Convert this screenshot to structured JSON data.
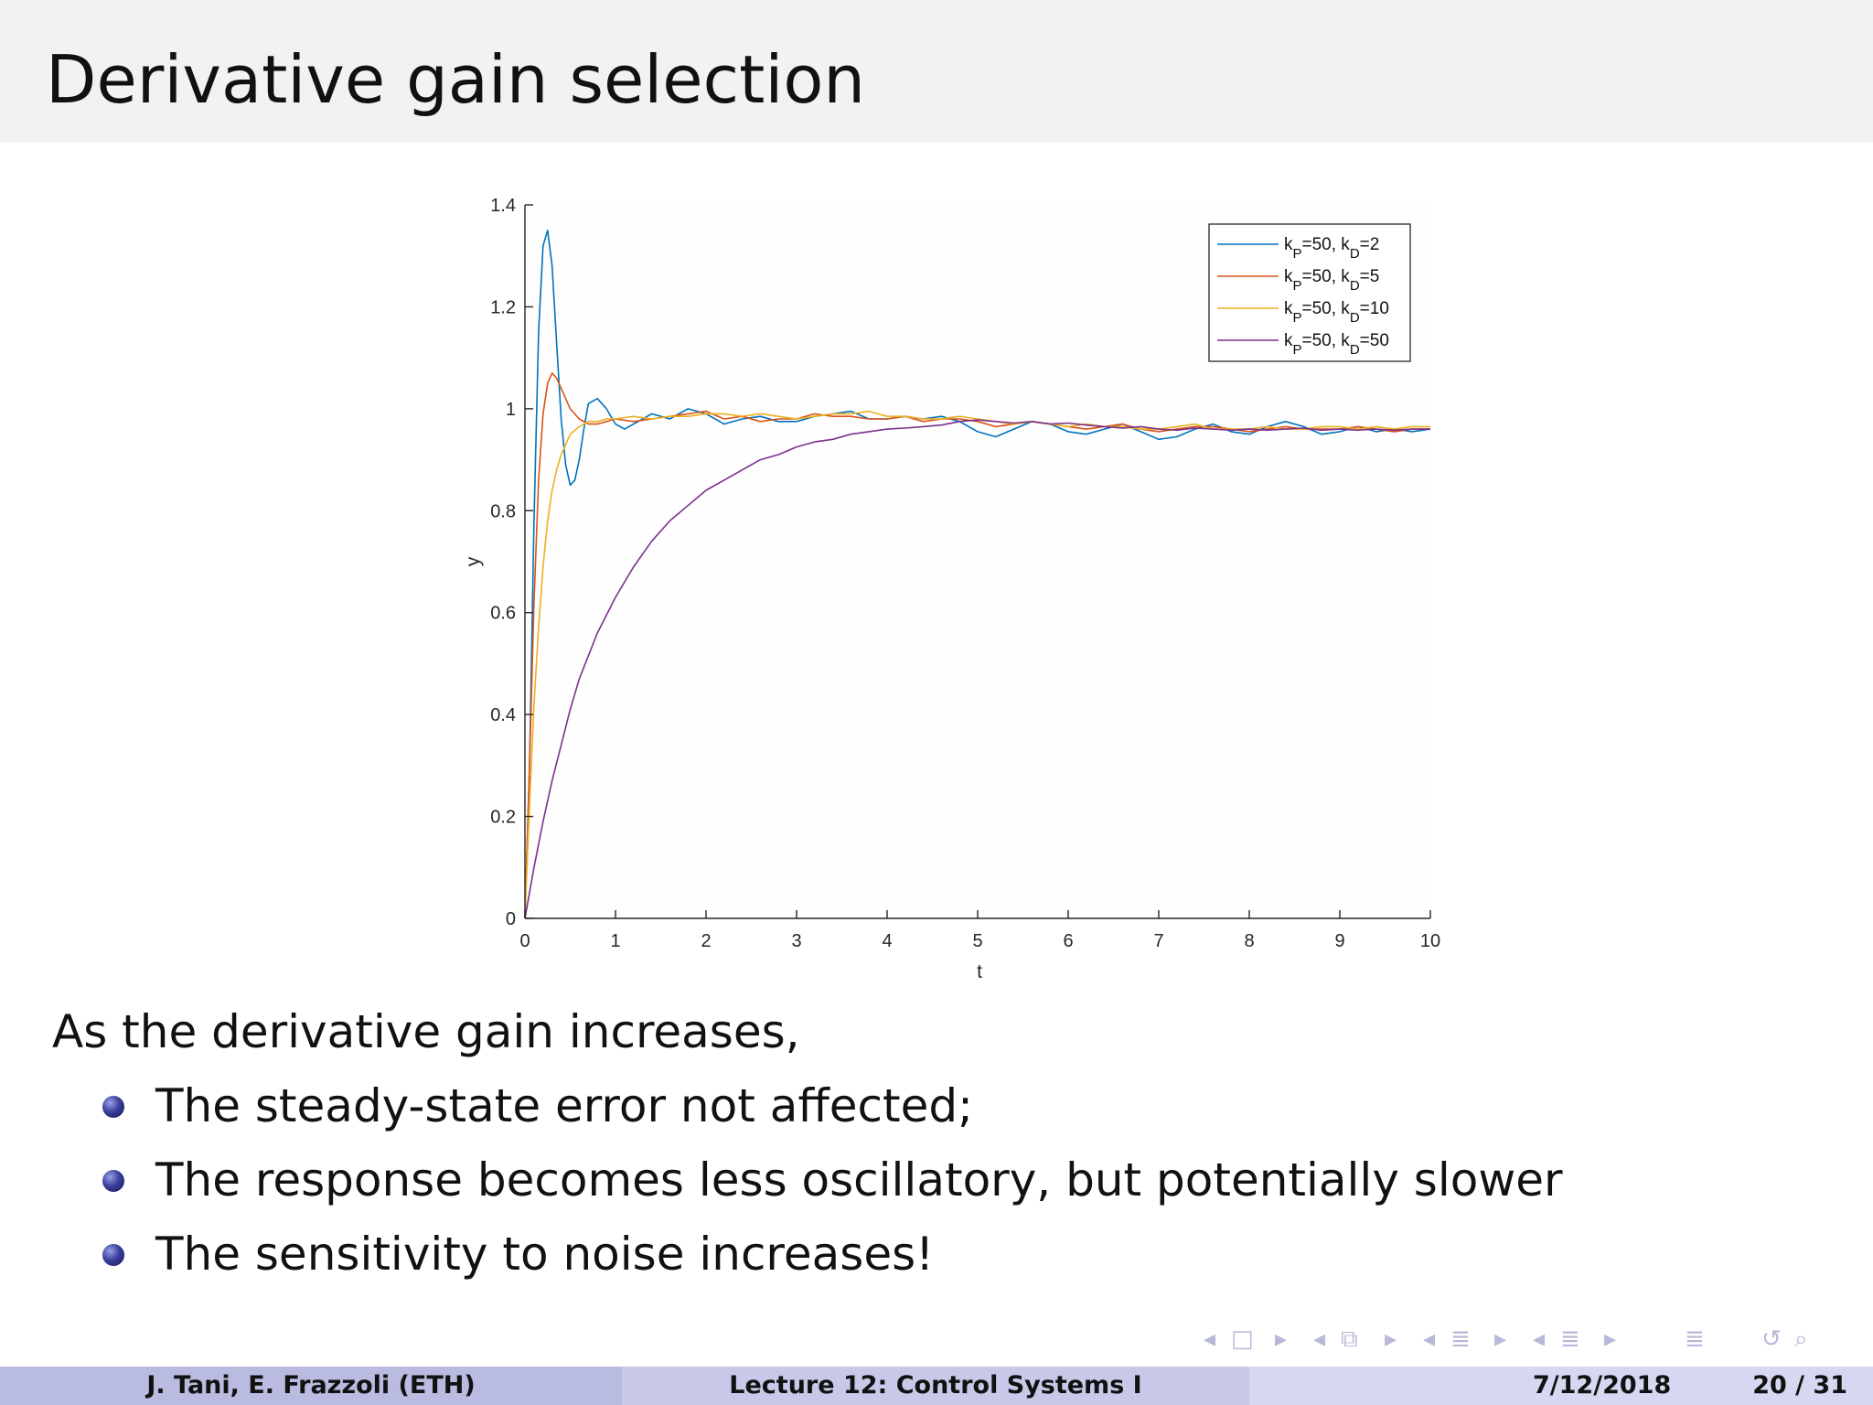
{
  "slide": {
    "title": "Derivative gain selection",
    "intro": "As the derivative gain increases,",
    "bullets": [
      "The steady-state error not affected;",
      "The response becomes less oscillatory, but potentially slower",
      "The sensitivity to noise increases!"
    ]
  },
  "footer": {
    "authors": "J. Tani, E. Frazzoli  (ETH)",
    "lecture": "Lecture 12: Control Systems I",
    "date": "7/12/2018",
    "page": "20 / 31"
  },
  "navigation": {
    "icons": [
      "arrow-left-icon",
      "frame-icon",
      "arrow-right-icon",
      "arrow-left-icon",
      "subsection-icon",
      "arrow-right-icon",
      "arrow-left-icon",
      "section-icon",
      "arrow-right-icon",
      "arrow-left-icon",
      "align-icon",
      "arrow-right-icon",
      "align-icon",
      "loop-icon",
      "search-icon"
    ]
  },
  "chart_data": {
    "type": "line",
    "xlabel": "t",
    "ylabel": "y",
    "xlim": [
      0,
      10
    ],
    "ylim": [
      0,
      1.4
    ],
    "xticks": [
      "0",
      "1",
      "2",
      "3",
      "4",
      "5",
      "6",
      "7",
      "8",
      "9",
      "10"
    ],
    "yticks": [
      "0",
      "0.2",
      "0.4",
      "0.6",
      "0.8",
      "1",
      "1.2",
      "1.4"
    ],
    "legend_position": "top-right",
    "grid": false,
    "series": [
      {
        "name": "kP=50, kD=2",
        "name_parts": {
          "k1": "k",
          "sub1": "P",
          "mid": "=50, k",
          "sub2": "D",
          "end": "=2"
        },
        "color": "#0072bd",
        "x": [
          0,
          0.05,
          0.1,
          0.15,
          0.2,
          0.25,
          0.3,
          0.35,
          0.4,
          0.45,
          0.5,
          0.55,
          0.6,
          0.65,
          0.7,
          0.8,
          0.9,
          1.0,
          1.1,
          1.2,
          1.3,
          1.4,
          1.5,
          1.6,
          1.7,
          1.8,
          2.0,
          2.2,
          2.4,
          2.6,
          2.8,
          3.0,
          3.2,
          3.4,
          3.6,
          3.8,
          4.0,
          4.2,
          4.4,
          4.6,
          4.8,
          5.0,
          5.2,
          5.4,
          5.6,
          5.8,
          6.0,
          6.2,
          6.4,
          6.6,
          6.8,
          7.0,
          7.2,
          7.4,
          7.6,
          7.8,
          8.0,
          8.2,
          8.4,
          8.6,
          8.8,
          9.0,
          9.2,
          9.4,
          9.6,
          9.8,
          10.0
        ],
        "y": [
          0,
          0.3,
          0.78,
          1.15,
          1.32,
          1.35,
          1.28,
          1.13,
          0.98,
          0.89,
          0.85,
          0.86,
          0.9,
          0.96,
          1.01,
          1.02,
          1.0,
          0.97,
          0.96,
          0.97,
          0.98,
          0.99,
          0.985,
          0.98,
          0.99,
          1.0,
          0.99,
          0.97,
          0.98,
          0.985,
          0.975,
          0.975,
          0.985,
          0.99,
          0.995,
          0.98,
          0.98,
          0.985,
          0.98,
          0.985,
          0.975,
          0.955,
          0.945,
          0.96,
          0.975,
          0.97,
          0.955,
          0.95,
          0.96,
          0.97,
          0.955,
          0.94,
          0.945,
          0.96,
          0.97,
          0.955,
          0.95,
          0.965,
          0.975,
          0.965,
          0.95,
          0.955,
          0.965,
          0.955,
          0.96,
          0.955,
          0.96
        ]
      },
      {
        "name": "kP=50, kD=5",
        "name_parts": {
          "k1": "k",
          "sub1": "P",
          "mid": "=50, k",
          "sub2": "D",
          "end": "=5"
        },
        "color": "#d95319",
        "x": [
          0,
          0.05,
          0.1,
          0.15,
          0.2,
          0.25,
          0.3,
          0.35,
          0.4,
          0.45,
          0.5,
          0.6,
          0.7,
          0.8,
          0.9,
          1.0,
          1.2,
          1.4,
          1.6,
          1.8,
          2.0,
          2.2,
          2.4,
          2.6,
          2.8,
          3.0,
          3.2,
          3.4,
          3.6,
          3.8,
          4.0,
          4.2,
          4.4,
          4.6,
          4.8,
          5.0,
          5.2,
          5.4,
          5.6,
          5.8,
          6.0,
          6.2,
          6.4,
          6.6,
          6.8,
          7.0,
          7.2,
          7.4,
          7.6,
          7.8,
          8.0,
          8.2,
          8.4,
          8.6,
          8.8,
          9.0,
          9.2,
          9.4,
          9.6,
          9.8,
          10.0
        ],
        "y": [
          0,
          0.3,
          0.62,
          0.86,
          0.99,
          1.05,
          1.07,
          1.06,
          1.04,
          1.02,
          1.0,
          0.98,
          0.97,
          0.97,
          0.975,
          0.98,
          0.975,
          0.98,
          0.985,
          0.99,
          0.995,
          0.98,
          0.985,
          0.975,
          0.98,
          0.98,
          0.99,
          0.985,
          0.985,
          0.98,
          0.98,
          0.985,
          0.975,
          0.98,
          0.98,
          0.975,
          0.965,
          0.97,
          0.975,
          0.97,
          0.965,
          0.96,
          0.965,
          0.97,
          0.96,
          0.955,
          0.96,
          0.965,
          0.965,
          0.96,
          0.955,
          0.96,
          0.965,
          0.96,
          0.96,
          0.96,
          0.965,
          0.96,
          0.955,
          0.96,
          0.96
        ]
      },
      {
        "name": "kP=50, kD=10",
        "name_parts": {
          "k1": "k",
          "sub1": "P",
          "mid": "=50, k",
          "sub2": "D",
          "end": "=10"
        },
        "color": "#edb120",
        "x": [
          0,
          0.05,
          0.1,
          0.15,
          0.2,
          0.25,
          0.3,
          0.35,
          0.4,
          0.5,
          0.6,
          0.7,
          0.8,
          0.9,
          1.0,
          1.2,
          1.4,
          1.6,
          1.8,
          2.0,
          2.2,
          2.4,
          2.6,
          2.8,
          3.0,
          3.2,
          3.4,
          3.6,
          3.8,
          4.0,
          4.2,
          4.4,
          4.6,
          4.8,
          5.0,
          5.2,
          5.4,
          5.6,
          5.8,
          6.0,
          6.2,
          6.4,
          6.6,
          6.8,
          7.0,
          7.2,
          7.4,
          7.6,
          7.8,
          8.0,
          8.2,
          8.4,
          8.6,
          8.8,
          9.0,
          9.2,
          9.4,
          9.6,
          9.8,
          10.0
        ],
        "y": [
          0,
          0.22,
          0.42,
          0.57,
          0.69,
          0.78,
          0.84,
          0.88,
          0.91,
          0.95,
          0.965,
          0.975,
          0.975,
          0.98,
          0.98,
          0.985,
          0.98,
          0.985,
          0.985,
          0.99,
          0.99,
          0.985,
          0.99,
          0.985,
          0.98,
          0.985,
          0.99,
          0.99,
          0.995,
          0.985,
          0.985,
          0.98,
          0.98,
          0.985,
          0.98,
          0.975,
          0.97,
          0.975,
          0.97,
          0.965,
          0.97,
          0.965,
          0.965,
          0.96,
          0.96,
          0.965,
          0.97,
          0.96,
          0.96,
          0.96,
          0.965,
          0.96,
          0.96,
          0.965,
          0.965,
          0.96,
          0.965,
          0.96,
          0.965,
          0.965
        ]
      },
      {
        "name": "kP=50, kD=50",
        "name_parts": {
          "k1": "k",
          "sub1": "P",
          "mid": "=50, k",
          "sub2": "D",
          "end": "=50"
        },
        "color": "#7e2f8e",
        "x": [
          0,
          0.1,
          0.2,
          0.3,
          0.4,
          0.5,
          0.6,
          0.8,
          1.0,
          1.2,
          1.4,
          1.6,
          1.8,
          2.0,
          2.2,
          2.4,
          2.6,
          2.8,
          3.0,
          3.2,
          3.4,
          3.6,
          3.8,
          4.0,
          4.2,
          4.4,
          4.6,
          4.8,
          5.0,
          5.2,
          5.4,
          5.6,
          5.8,
          6.0,
          6.2,
          6.4,
          6.6,
          6.8,
          7.0,
          7.2,
          7.4,
          7.6,
          7.8,
          8.0,
          8.2,
          8.4,
          8.6,
          8.8,
          9.0,
          9.2,
          9.4,
          9.6,
          9.8,
          10.0
        ],
        "y": [
          0,
          0.1,
          0.19,
          0.27,
          0.34,
          0.41,
          0.47,
          0.56,
          0.63,
          0.69,
          0.74,
          0.78,
          0.81,
          0.84,
          0.86,
          0.88,
          0.9,
          0.91,
          0.925,
          0.935,
          0.94,
          0.95,
          0.955,
          0.96,
          0.962,
          0.965,
          0.968,
          0.975,
          0.978,
          0.975,
          0.972,
          0.975,
          0.97,
          0.972,
          0.968,
          0.965,
          0.962,
          0.965,
          0.96,
          0.958,
          0.962,
          0.96,
          0.958,
          0.96,
          0.958,
          0.96,
          0.962,
          0.958,
          0.96,
          0.958,
          0.96,
          0.958,
          0.96,
          0.96
        ]
      }
    ]
  }
}
